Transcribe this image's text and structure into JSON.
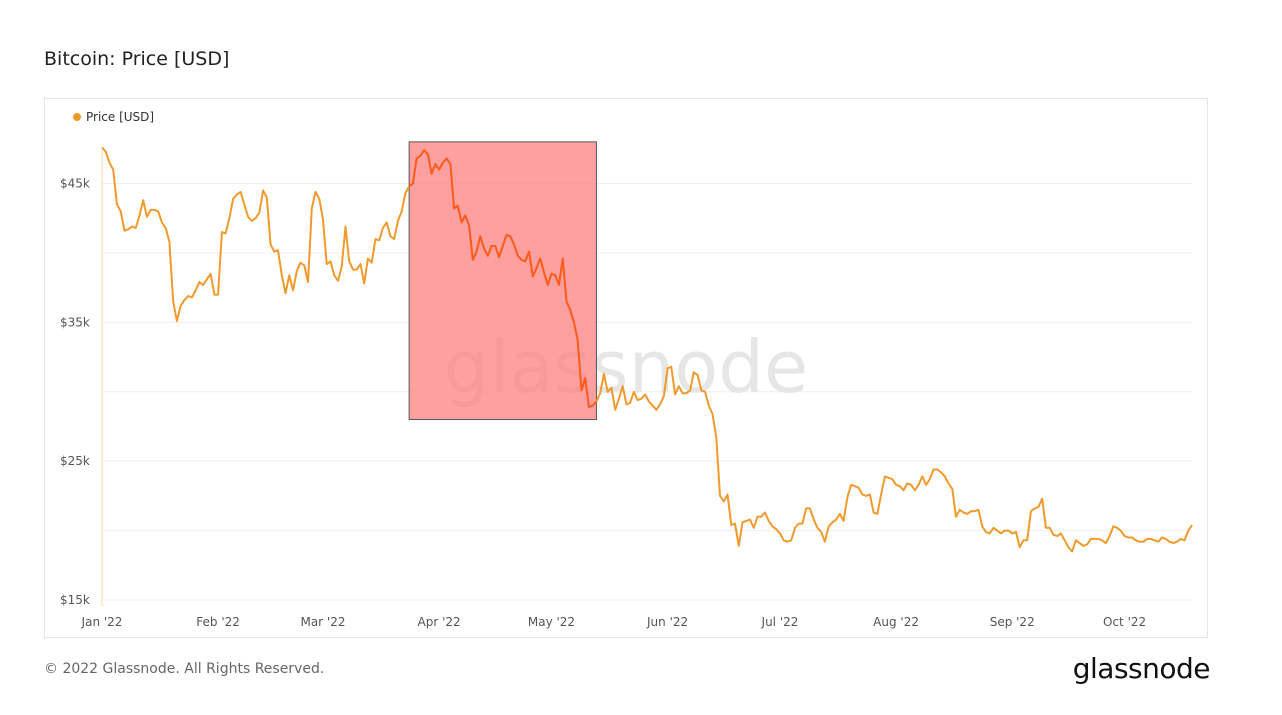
{
  "header": {
    "title": "Bitcoin: Price [USD]"
  },
  "footer": {
    "copyright": "© 2022 Glassnode. All Rights Reserved.",
    "brand": "glassnode"
  },
  "watermark": "glassnode",
  "colors": {
    "line": "#f09a2d",
    "highlight_fill": "#ff8080",
    "highlight_line": "#ff5a1f",
    "grid": "#efefef"
  },
  "chart_data": {
    "type": "line",
    "series": [
      {
        "name": "Price [USD]",
        "color": "#f09a2d"
      }
    ],
    "legend_position": "top-left",
    "ylim": [
      15000,
      49000
    ],
    "y_ticks": [
      {
        "value": 15000,
        "label": "$15k"
      },
      {
        "value": 25000,
        "label": "$25k"
      },
      {
        "value": 35000,
        "label": "$35k"
      },
      {
        "value": 45000,
        "label": "$45k"
      }
    ],
    "x_ticks": [
      {
        "day": 0,
        "label": "Jan '22"
      },
      {
        "day": 31,
        "label": "Feb '22"
      },
      {
        "day": 59,
        "label": "Mar '22"
      },
      {
        "day": 90,
        "label": "Apr '22"
      },
      {
        "day": 120,
        "label": "May '22"
      },
      {
        "day": 151,
        "label": "Jun '22"
      },
      {
        "day": 181,
        "label": "Jul '22"
      },
      {
        "day": 212,
        "label": "Aug '22"
      },
      {
        "day": 243,
        "label": "Sep '22"
      },
      {
        "day": 273,
        "label": "Oct '22"
      }
    ],
    "highlight": {
      "x_start": 82,
      "x_end": 132,
      "y_start": 28000,
      "y_end": 48000
    },
    "points": [
      [
        0,
        47600
      ],
      [
        1,
        47300
      ],
      [
        2,
        46500
      ],
      [
        3,
        46000
      ],
      [
        4,
        43500
      ],
      [
        5,
        43000
      ],
      [
        6,
        41600
      ],
      [
        7,
        41700
      ],
      [
        8,
        41900
      ],
      [
        9,
        41800
      ],
      [
        10,
        42700
      ],
      [
        11,
        43800
      ],
      [
        12,
        42600
      ],
      [
        13,
        43100
      ],
      [
        14,
        43100
      ],
      [
        15,
        43000
      ],
      [
        16,
        42200
      ],
      [
        17,
        41800
      ],
      [
        18,
        40800
      ],
      [
        19,
        36500
      ],
      [
        20,
        35100
      ],
      [
        21,
        36200
      ],
      [
        22,
        36600
      ],
      [
        23,
        36900
      ],
      [
        24,
        36800
      ],
      [
        25,
        37300
      ],
      [
        26,
        37900
      ],
      [
        27,
        37700
      ],
      [
        28,
        38100
      ],
      [
        29,
        38500
      ],
      [
        30,
        37000
      ],
      [
        31,
        37000
      ],
      [
        32,
        41500
      ],
      [
        33,
        41400
      ],
      [
        34,
        42500
      ],
      [
        35,
        43900
      ],
      [
        36,
        44200
      ],
      [
        37,
        44400
      ],
      [
        38,
        43500
      ],
      [
        39,
        42600
      ],
      [
        40,
        42300
      ],
      [
        41,
        42500
      ],
      [
        42,
        42900
      ],
      [
        43,
        44500
      ],
      [
        44,
        44000
      ],
      [
        45,
        40600
      ],
      [
        46,
        40100
      ],
      [
        47,
        40200
      ],
      [
        48,
        38400
      ],
      [
        49,
        37100
      ],
      [
        50,
        38400
      ],
      [
        51,
        37300
      ],
      [
        52,
        38700
      ],
      [
        53,
        39300
      ],
      [
        54,
        39100
      ],
      [
        55,
        37900
      ],
      [
        56,
        43200
      ],
      [
        57,
        44400
      ],
      [
        58,
        43900
      ],
      [
        59,
        42400
      ],
      [
        60,
        39200
      ],
      [
        61,
        39400
      ],
      [
        62,
        38400
      ],
      [
        63,
        38000
      ],
      [
        64,
        39000
      ],
      [
        65,
        41900
      ],
      [
        66,
        39400
      ],
      [
        67,
        38800
      ],
      [
        68,
        38800
      ],
      [
        69,
        39200
      ],
      [
        70,
        37800
      ],
      [
        71,
        39600
      ],
      [
        72,
        39300
      ],
      [
        73,
        41000
      ],
      [
        74,
        40900
      ],
      [
        75,
        41800
      ],
      [
        76,
        42200
      ],
      [
        77,
        41200
      ],
      [
        78,
        41000
      ],
      [
        79,
        42300
      ],
      [
        80,
        43000
      ],
      [
        81,
        44300
      ],
      [
        82,
        44800
      ],
      [
        83,
        45000
      ],
      [
        84,
        46800
      ],
      [
        85,
        47000
      ],
      [
        86,
        47400
      ],
      [
        87,
        47100
      ],
      [
        88,
        45700
      ],
      [
        89,
        46400
      ],
      [
        90,
        46000
      ],
      [
        91,
        46500
      ],
      [
        92,
        46800
      ],
      [
        93,
        46400
      ],
      [
        94,
        43200
      ],
      [
        95,
        43400
      ],
      [
        96,
        42200
      ],
      [
        97,
        42700
      ],
      [
        98,
        42000
      ],
      [
        99,
        39500
      ],
      [
        100,
        40100
      ],
      [
        101,
        41200
      ],
      [
        102,
        40300
      ],
      [
        103,
        39800
      ],
      [
        104,
        40500
      ],
      [
        105,
        40500
      ],
      [
        106,
        39700
      ],
      [
        107,
        40500
      ],
      [
        108,
        41300
      ],
      [
        109,
        41200
      ],
      [
        110,
        40600
      ],
      [
        111,
        39800
      ],
      [
        112,
        39500
      ],
      [
        113,
        39400
      ],
      [
        114,
        40100
      ],
      [
        115,
        38300
      ],
      [
        116,
        38900
      ],
      [
        117,
        39600
      ],
      [
        118,
        38600
      ],
      [
        119,
        37700
      ],
      [
        120,
        38500
      ],
      [
        121,
        38400
      ],
      [
        122,
        37700
      ],
      [
        123,
        39600
      ],
      [
        124,
        36500
      ],
      [
        125,
        35900
      ],
      [
        126,
        35000
      ],
      [
        127,
        33700
      ],
      [
        128,
        30100
      ],
      [
        129,
        31000
      ],
      [
        130,
        28900
      ],
      [
        131,
        29000
      ],
      [
        132,
        29300
      ],
      [
        133,
        29900
      ],
      [
        134,
        31300
      ],
      [
        135,
        30000
      ],
      [
        136,
        30300
      ],
      [
        137,
        28700
      ],
      [
        138,
        29500
      ],
      [
        139,
        30400
      ],
      [
        140,
        29100
      ],
      [
        141,
        29200
      ],
      [
        142,
        30000
      ],
      [
        143,
        29400
      ],
      [
        144,
        29500
      ],
      [
        145,
        29800
      ],
      [
        146,
        29300
      ],
      [
        147,
        29000
      ],
      [
        148,
        28700
      ],
      [
        149,
        29100
      ],
      [
        150,
        29700
      ],
      [
        151,
        31700
      ],
      [
        152,
        31800
      ],
      [
        153,
        29800
      ],
      [
        154,
        30400
      ],
      [
        155,
        29900
      ],
      [
        156,
        29900
      ],
      [
        157,
        30100
      ],
      [
        158,
        31400
      ],
      [
        159,
        31200
      ],
      [
        160,
        30100
      ],
      [
        161,
        30000
      ],
      [
        162,
        29000
      ],
      [
        163,
        28400
      ],
      [
        164,
        26700
      ],
      [
        165,
        22500
      ],
      [
        166,
        22100
      ],
      [
        167,
        22600
      ],
      [
        168,
        20400
      ],
      [
        169,
        20500
      ],
      [
        170,
        18900
      ],
      [
        171,
        20600
      ],
      [
        172,
        20700
      ],
      [
        173,
        20800
      ],
      [
        174,
        20200
      ],
      [
        175,
        21000
      ],
      [
        176,
        21000
      ],
      [
        177,
        21300
      ],
      [
        178,
        20700
      ],
      [
        179,
        20300
      ],
      [
        180,
        20100
      ],
      [
        181,
        19800
      ],
      [
        182,
        19300
      ],
      [
        183,
        19200
      ],
      [
        184,
        19300
      ],
      [
        185,
        20200
      ],
      [
        186,
        20500
      ],
      [
        187,
        20500
      ],
      [
        188,
        21600
      ],
      [
        189,
        21600
      ],
      [
        190,
        20800
      ],
      [
        191,
        20200
      ],
      [
        192,
        19900
      ],
      [
        193,
        19200
      ],
      [
        194,
        20300
      ],
      [
        195,
        20600
      ],
      [
        196,
        20800
      ],
      [
        197,
        21200
      ],
      [
        198,
        20700
      ],
      [
        199,
        22400
      ],
      [
        200,
        23300
      ],
      [
        201,
        23200
      ],
      [
        202,
        23100
      ],
      [
        203,
        22600
      ],
      [
        204,
        22500
      ],
      [
        205,
        22600
      ],
      [
        206,
        21300
      ],
      [
        207,
        21200
      ],
      [
        208,
        22600
      ],
      [
        209,
        23900
      ],
      [
        210,
        23800
      ],
      [
        211,
        23700
      ],
      [
        212,
        23300
      ],
      [
        213,
        23200
      ],
      [
        214,
        22900
      ],
      [
        215,
        23400
      ],
      [
        216,
        23300
      ],
      [
        217,
        22900
      ],
      [
        218,
        23300
      ],
      [
        219,
        23900
      ],
      [
        220,
        23300
      ],
      [
        221,
        23700
      ],
      [
        222,
        24400
      ],
      [
        223,
        24400
      ],
      [
        224,
        24200
      ],
      [
        225,
        23900
      ],
      [
        226,
        23400
      ],
      [
        227,
        23000
      ],
      [
        228,
        21000
      ],
      [
        229,
        21500
      ],
      [
        230,
        21300
      ],
      [
        231,
        21200
      ],
      [
        232,
        21400
      ],
      [
        233,
        21400
      ],
      [
        234,
        21500
      ],
      [
        235,
        20300
      ],
      [
        236,
        19900
      ],
      [
        237,
        19800
      ],
      [
        238,
        20200
      ],
      [
        239,
        20000
      ],
      [
        240,
        19800
      ],
      [
        241,
        20000
      ],
      [
        242,
        20000
      ],
      [
        243,
        19800
      ],
      [
        244,
        19900
      ],
      [
        245,
        18800
      ],
      [
        246,
        19300
      ],
      [
        247,
        19300
      ],
      [
        248,
        21400
      ],
      [
        249,
        21600
      ],
      [
        250,
        21700
      ],
      [
        251,
        22300
      ],
      [
        252,
        20200
      ],
      [
        253,
        20200
      ],
      [
        254,
        19700
      ],
      [
        255,
        19600
      ],
      [
        256,
        19800
      ],
      [
        257,
        19300
      ],
      [
        258,
        18800
      ],
      [
        259,
        18500
      ],
      [
        260,
        19300
      ],
      [
        261,
        19100
      ],
      [
        262,
        18900
      ],
      [
        263,
        19000
      ],
      [
        264,
        19400
      ],
      [
        265,
        19400
      ],
      [
        266,
        19400
      ],
      [
        267,
        19300
      ],
      [
        268,
        19100
      ],
      [
        269,
        19600
      ],
      [
        270,
        20300
      ],
      [
        271,
        20200
      ],
      [
        272,
        20000
      ],
      [
        273,
        19600
      ],
      [
        274,
        19500
      ],
      [
        275,
        19500
      ],
      [
        276,
        19300
      ],
      [
        277,
        19200
      ],
      [
        278,
        19200
      ],
      [
        279,
        19400
      ],
      [
        280,
        19400
      ],
      [
        281,
        19300
      ],
      [
        282,
        19200
      ],
      [
        283,
        19500
      ],
      [
        284,
        19400
      ],
      [
        285,
        19200
      ],
      [
        286,
        19100
      ],
      [
        287,
        19200
      ],
      [
        288,
        19400
      ],
      [
        289,
        19300
      ],
      [
        290,
        20000
      ],
      [
        291,
        20400
      ]
    ]
  }
}
